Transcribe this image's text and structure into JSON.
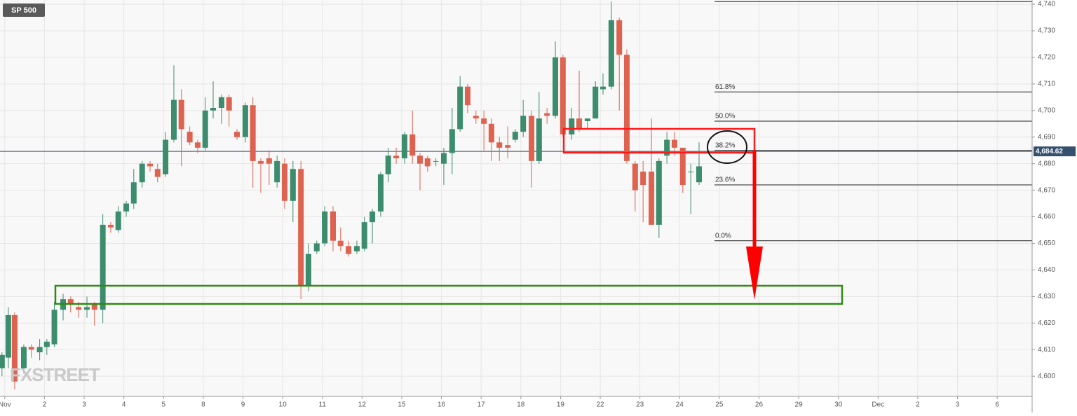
{
  "chart_data": {
    "type": "candlestick",
    "title": "SP 500",
    "watermark": "FXSTREET",
    "up_color": "#3c8c6e",
    "down_color": "#dd6350",
    "xlim": [
      -0.12,
      25.88
    ],
    "ylim": [
      4592.4,
      4741.6
    ],
    "xticks": [
      {
        "value": 0,
        "label": "Nov"
      },
      {
        "value": 1,
        "label": "2"
      },
      {
        "value": 2,
        "label": "3"
      },
      {
        "value": 3,
        "label": "4"
      },
      {
        "value": 4,
        "label": "5"
      },
      {
        "value": 5,
        "label": "8"
      },
      {
        "value": 6,
        "label": "9"
      },
      {
        "value": 7,
        "label": "10"
      },
      {
        "value": 8,
        "label": "11"
      },
      {
        "value": 9,
        "label": "12"
      },
      {
        "value": 10,
        "label": "15"
      },
      {
        "value": 11,
        "label": "16"
      },
      {
        "value": 12,
        "label": "17"
      },
      {
        "value": 13,
        "label": "18"
      },
      {
        "value": 14,
        "label": "19"
      },
      {
        "value": 15,
        "label": "22"
      },
      {
        "value": 16,
        "label": "23"
      },
      {
        "value": 17,
        "label": "24"
      },
      {
        "value": 18,
        "label": "25"
      },
      {
        "value": 19,
        "label": "26"
      },
      {
        "value": 20,
        "label": "29"
      },
      {
        "value": 21,
        "label": "30"
      },
      {
        "value": 22,
        "label": "Dec"
      },
      {
        "value": 23,
        "label": "2"
      },
      {
        "value": 24,
        "label": "3"
      },
      {
        "value": 25,
        "label": "6"
      }
    ],
    "yticks": [
      {
        "value": 4600,
        "label": "4,600"
      },
      {
        "value": 4610,
        "label": "4,610"
      },
      {
        "value": 4620,
        "label": "4,620"
      },
      {
        "value": 4630,
        "label": "4,630"
      },
      {
        "value": 4640,
        "label": "4,640"
      },
      {
        "value": 4650,
        "label": "4,650"
      },
      {
        "value": 4660,
        "label": "4,660"
      },
      {
        "value": 4670,
        "label": "4,670"
      },
      {
        "value": 4680,
        "label": "4,680"
      },
      {
        "value": 4690,
        "label": "4,690"
      },
      {
        "value": 4700,
        "label": "4,700"
      },
      {
        "value": 4710,
        "label": "4,710"
      },
      {
        "value": 4720,
        "label": "4,720"
      },
      {
        "value": 4730,
        "label": "4,730"
      },
      {
        "value": 4740,
        "label": "4,740"
      }
    ],
    "grid": true,
    "last_price": {
      "value": 4684.62,
      "label": "4,684.62"
    },
    "fib_levels": [
      {
        "value": 4741
      },
      {
        "value": 4707,
        "label": "61.8%"
      },
      {
        "value": 4696,
        "label": "50.0%"
      },
      {
        "value": 4685,
        "label": "38.2%"
      },
      {
        "value": 4672,
        "label": "23.6%"
      },
      {
        "value": 4651,
        "label": "0.0%"
      }
    ],
    "x": [
      -0.07,
      0.09,
      0.25,
      0.48,
      0.67,
      0.88,
      1.06,
      1.25,
      1.47,
      1.66,
      1.86,
      2.07,
      2.26,
      2.47,
      2.67,
      2.86,
      3.06,
      3.25,
      3.46,
      3.66,
      3.85,
      4.05,
      4.26,
      4.45,
      4.66,
      4.86,
      5.05,
      5.25,
      5.46,
      5.65,
      5.85,
      6.06,
      6.25,
      6.45,
      6.66,
      6.86,
      7.05,
      7.26,
      7.46,
      7.65,
      7.86,
      8.06,
      8.27,
      8.46,
      8.66,
      8.87,
      9.06,
      9.26,
      9.47,
      9.66,
      9.86,
      10.07,
      10.27,
      10.46,
      10.65,
      10.86,
      11.06,
      11.27,
      11.47,
      11.66,
      11.87,
      12.07,
      12.26,
      12.46,
      12.67,
      12.86,
      13.06,
      13.27,
      13.46,
      13.66,
      13.87,
      14.06,
      14.28,
      14.47,
      14.68,
      14.88,
      15.07,
      15.28,
      15.48,
      15.67,
      15.88,
      16.08,
      16.29,
      16.48,
      16.68,
      16.87,
      17.08,
      17.28,
      17.49
    ],
    "open": [
      4603,
      4607,
      4623,
      4603,
      4611,
      4609,
      4611,
      4612,
      4625,
      4629,
      4626,
      4625,
      4627,
      4625,
      4657,
      4655,
      4662,
      4665,
      4673,
      4680,
      4678,
      4676,
      4689,
      4704,
      4692,
      4688,
      4686,
      4700,
      4701,
      4705,
      4692,
      4690,
      4702,
      4681,
      4682,
      4673,
      4680,
      4666,
      4678,
      4634,
      4647,
      4650,
      4662,
      4651,
      4649,
      4647,
      4648,
      4658,
      4662,
      4676,
      4683,
      4682,
      4691,
      4683,
      4682,
      4681,
      4680,
      4684,
      4693,
      4709,
      4698,
      4697,
      4695,
      4688,
      4687,
      4689,
      4692,
      4698,
      4681,
      4699,
      4698,
      4720,
      4691,
      4697,
      4696,
      4697,
      4708,
      4709,
      4734,
      4721,
      4680,
      4677,
      4677,
      4657,
      4683,
      4689,
      4686,
      4677,
      4673
    ],
    "high": [
      4609,
      4626,
      4624,
      4612,
      4612,
      4614,
      4614,
      4628,
      4631,
      4630,
      4628,
      4630,
      4628,
      4661,
      4658,
      4664,
      4666,
      4678,
      4681,
      4681,
      4680,
      4692,
      4717,
      4708,
      4694,
      4689,
      4705,
      4711,
      4706,
      4706,
      4693,
      4703,
      4705,
      4682,
      4685,
      4683,
      4682,
      4681,
      4681,
      4650,
      4651,
      4664,
      4664,
      4656,
      4651,
      4651,
      4660,
      4663,
      4677,
      4686,
      4686,
      4692,
      4700,
      4684,
      4683,
      4682,
      4686,
      4701,
      4713,
      4710,
      4700,
      4700,
      4697,
      4690,
      4694,
      4693,
      4704,
      4700,
      4707,
      4701,
      4726,
      4721,
      4701,
      4715,
      4697,
      4711,
      4714,
      4741,
      4735,
      4723,
      4681,
      4681,
      4697,
      4682,
      4692,
      4692,
      4686,
      4680,
      4688
    ],
    "low": [
      4600,
      4603,
      4595,
      4601,
      4607,
      4606,
      4608,
      4611,
      4621,
      4624,
      4622,
      4622,
      4619,
      4620,
      4654,
      4654,
      4660,
      4663,
      4671,
      4677,
      4673,
      4675,
      4688,
      4679,
      4687,
      4684,
      4685,
      4697,
      4695,
      4694,
      4689,
      4688,
      4671,
      4669,
      4672,
      4671,
      4663,
      4658,
      4629,
      4632,
      4646,
      4649,
      4647,
      4647,
      4645,
      4646,
      4647,
      4650,
      4660,
      4673,
      4680,
      4680,
      4680,
      4670,
      4677,
      4679,
      4672,
      4676,
      4692,
      4699,
      4695,
      4685,
      4681,
      4681,
      4682,
      4688,
      4690,
      4671,
      4680,
      4695,
      4697,
      4690,
      4689,
      4692,
      4693,
      4697,
      4706,
      4708,
      4700,
      4680,
      4662,
      4658,
      4657,
      4652,
      4680,
      4683,
      4669,
      4661,
      4672
    ],
    "close": [
      4608,
      4623,
      4598,
      4611,
      4610,
      4611,
      4613,
      4625,
      4629,
      4627,
      4625,
      4626,
      4625,
      4657,
      4656,
      4662,
      4665,
      4673,
      4680,
      4679,
      4675,
      4689,
      4704,
      4693,
      4688,
      4686,
      4700,
      4701,
      4705,
      4700,
      4690,
      4702,
      4681,
      4680,
      4680,
      4681,
      4666,
      4678,
      4634,
      4646,
      4650,
      4662,
      4651,
      4649,
      4646,
      4649,
      4658,
      4662,
      4676,
      4683,
      4682,
      4691,
      4683,
      4680,
      4679,
      4681,
      4684,
      4693,
      4709,
      4702,
      4697,
      4695,
      4688,
      4686,
      4686,
      4692,
      4698,
      4681,
      4697,
      4698,
      4720,
      4691,
      4697,
      4693,
      4697,
      4709,
      4709,
      4734,
      4721,
      4681,
      4670,
      4672,
      4657,
      4681,
      4689,
      4686,
      4672,
      4677,
      4679
    ]
  }
}
